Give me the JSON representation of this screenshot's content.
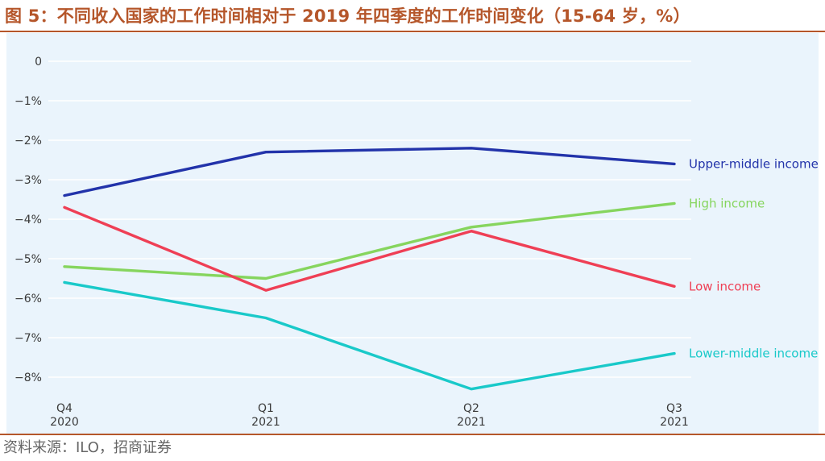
{
  "header": {
    "title": "图 5：不同收入国家的工作时间相对于 2019 年四季度的工作时间变化（15-64 岁，%）"
  },
  "footer": {
    "source": "资料来源：ILO，招商证券"
  },
  "chart_data": {
    "type": "line",
    "categories": [
      {
        "line1": "Q4",
        "line2": "2020"
      },
      {
        "line1": "Q1",
        "line2": "2021"
      },
      {
        "line1": "Q2",
        "line2": "2021"
      },
      {
        "line1": "Q3",
        "line2": "2021"
      }
    ],
    "y_ticks": [
      {
        "value": 0,
        "label": "0"
      },
      {
        "value": -1,
        "label": "−1%"
      },
      {
        "value": -2,
        "label": "−2%"
      },
      {
        "value": -3,
        "label": "−3%"
      },
      {
        "value": -4,
        "label": "−4%"
      },
      {
        "value": -5,
        "label": "−5%"
      },
      {
        "value": -6,
        "label": "−6%"
      },
      {
        "value": -7,
        "label": "−7%"
      },
      {
        "value": -8,
        "label": "−8%"
      }
    ],
    "ylim": [
      -8.3,
      0
    ],
    "grid": true,
    "legend": "inline labels at line ends",
    "series": [
      {
        "name": "Upper-middle income",
        "color": "#2233AA",
        "values": [
          -3.4,
          -2.3,
          -2.2,
          -2.6
        ]
      },
      {
        "name": "High income",
        "color": "#86D55E",
        "values": [
          -5.2,
          -5.5,
          -4.2,
          -3.6
        ]
      },
      {
        "name": "Low income",
        "color": "#EF3F55",
        "values": [
          -3.7,
          -5.8,
          -4.3,
          -5.7
        ]
      },
      {
        "name": "Lower-middle income",
        "color": "#19C9C9",
        "values": [
          -5.6,
          -6.5,
          -8.3,
          -7.4
        ]
      }
    ]
  }
}
